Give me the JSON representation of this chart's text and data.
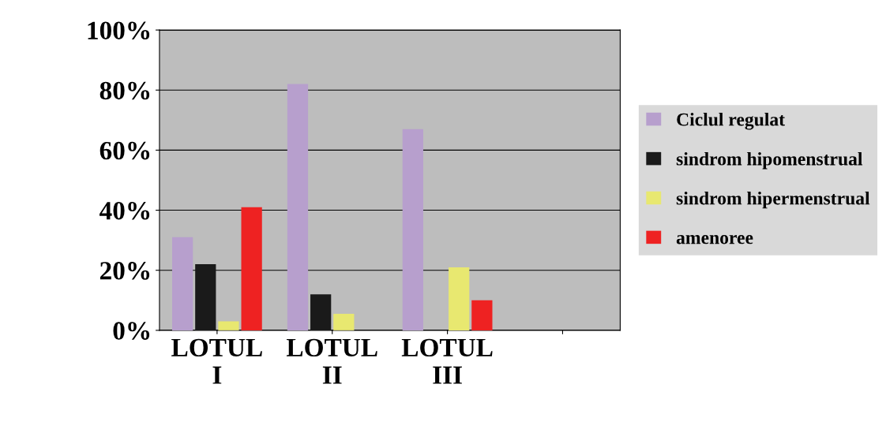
{
  "chart_data": {
    "type": "bar",
    "categories": [
      "LOTUL I",
      "LOTUL II",
      "LOTUL III",
      null
    ],
    "series": [
      {
        "name": "Ciclul regulat",
        "color": "#b79fcd",
        "values": [
          31,
          82,
          67,
          null
        ]
      },
      {
        "name": "sindrom hipomenstrual",
        "color": "#1a1a1a",
        "values": [
          22,
          12,
          0,
          null
        ]
      },
      {
        "name": "sindrom hipermenstrual",
        "color": "#e8e870",
        "values": [
          3,
          5.5,
          21,
          null
        ]
      },
      {
        "name": "amenoree",
        "color": "#ee2222",
        "values": [
          41,
          0,
          10,
          null
        ]
      }
    ],
    "ylim": [
      0,
      100
    ],
    "yticks": [
      {
        "value": 0,
        "label": "0%"
      },
      {
        "value": 20,
        "label": "20%"
      },
      {
        "value": 40,
        "label": "40%"
      },
      {
        "value": 60,
        "label": "60%"
      },
      {
        "value": 80,
        "label": "80%"
      },
      {
        "value": 100,
        "label": "100%"
      }
    ],
    "grid": "y",
    "legend": "right"
  }
}
